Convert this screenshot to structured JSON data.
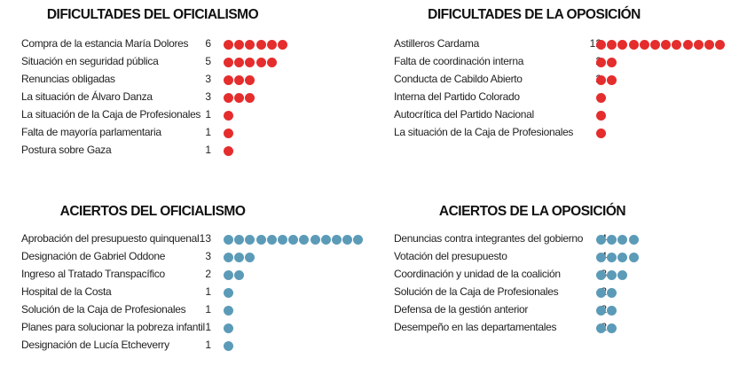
{
  "colors": {
    "difficulties": "#e52d2d",
    "successes": "#5b9bb8"
  },
  "chart_data": [
    {
      "type": "dot",
      "title": "DIFICULTADES DEL OFICIALISMO",
      "color": "#e52d2d",
      "categories": [
        "Compra de la estancia María Dolores",
        "Situación en seguridad pública",
        "Renuncias obligadas",
        "La situación de Álvaro Danza",
        "La situación de la Caja de Profesionales",
        "Falta de mayoría parlamentaria",
        "Postura sobre Gaza"
      ],
      "values": [
        6,
        5,
        3,
        3,
        1,
        1,
        1
      ],
      "labels": [
        "6",
        "5",
        "3",
        "3",
        "1",
        "1",
        "1"
      ]
    },
    {
      "type": "dot",
      "title": "DIFICULTADES DE LA OPOSICIÓN",
      "color": "#e52d2d",
      "categories": [
        "Astilleros Cardama",
        "Falta de coordinación interna",
        "Conducta de Cabildo Abierto",
        "Interna del Partido Colorado",
        "Autocrítica del Partido Nacional",
        "La situación de la Caja de Profesionales"
      ],
      "values": [
        12,
        2,
        2,
        1,
        1,
        1
      ],
      "labels": [
        "12",
        "2",
        "2",
        "",
        "",
        ""
      ]
    },
    {
      "type": "dot",
      "title": "ACIERTOS DEL OFICIALISMO",
      "color": "#5b9bb8",
      "categories": [
        "Aprobación del presupuesto quinquenal",
        "Designación de Gabriel Oddone",
        "Ingreso al Tratado Transpacífico",
        "Hospital de la Costa",
        "Solución de la Caja de Profesionales",
        "Planes para solucionar la  pobreza infantil",
        "Designación de Lucía Etcheverry"
      ],
      "values": [
        13,
        3,
        2,
        1,
        1,
        1,
        1
      ],
      "labels": [
        "13",
        "3",
        "2",
        "1",
        "1",
        "1",
        "1"
      ]
    },
    {
      "type": "dot",
      "title": "ACIERTOS DE LA OPOSICIÓN",
      "color": "#5b9bb8",
      "categories": [
        "Denuncias contra integrantes del gobierno",
        "Votación del presupuesto",
        "Coordinación y unidad de la coalición",
        "Solución de la Caja de Profesionales",
        "Defensa de la gestión anterior",
        "Desempeño en las departamentales"
      ],
      "values": [
        4,
        4,
        3,
        2,
        2,
        2
      ],
      "labels": [
        "4",
        "4",
        "3",
        "2",
        "2",
        "2"
      ]
    }
  ]
}
